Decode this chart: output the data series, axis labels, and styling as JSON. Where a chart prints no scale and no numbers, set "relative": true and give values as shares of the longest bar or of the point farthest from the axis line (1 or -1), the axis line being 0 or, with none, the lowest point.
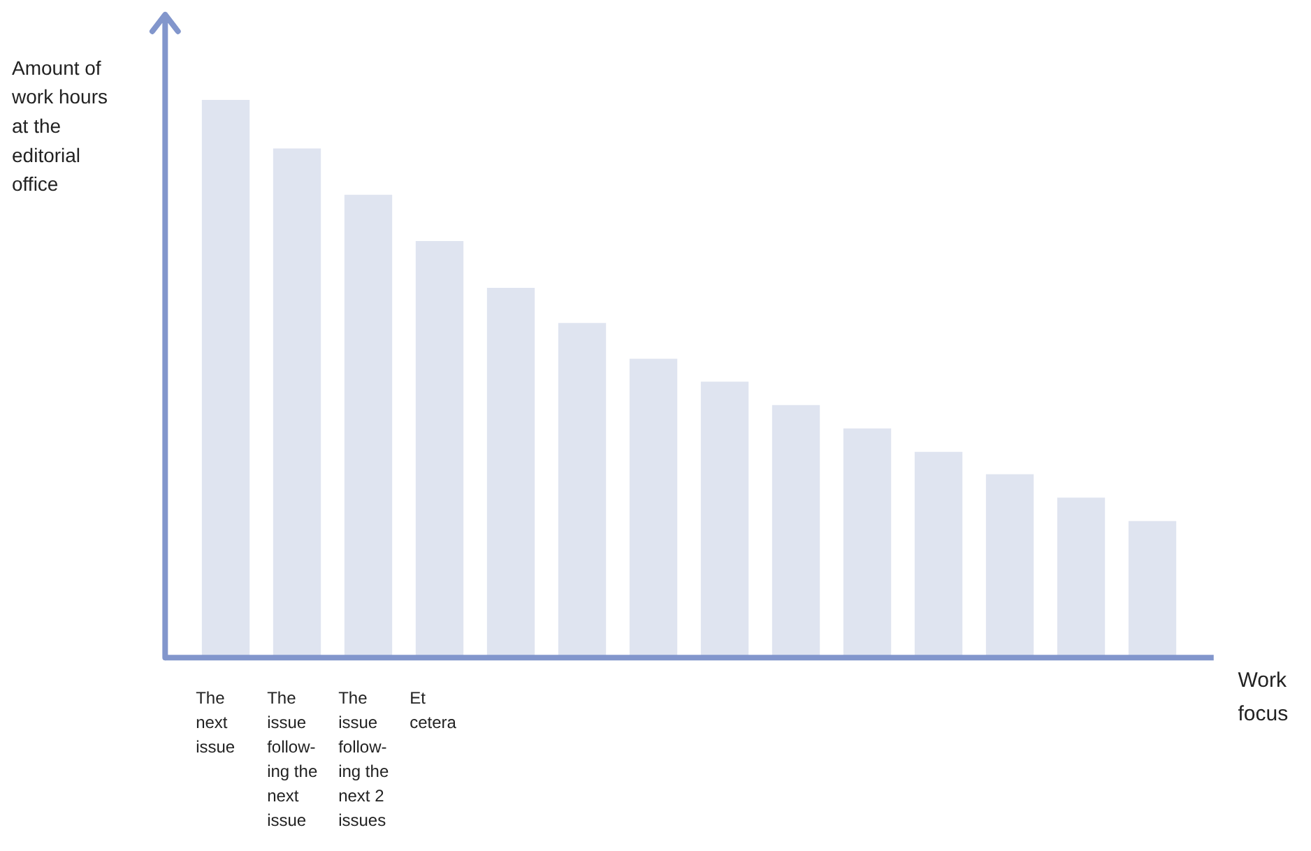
{
  "chart_data": {
    "type": "bar",
    "relative": true,
    "ylabel": "Amount of work hours at the editorial office",
    "xlabel": "Work focus",
    "categories": [
      "The next issue",
      "The issue follow-ing the next issue",
      "The issue follow-ing the next 2 issues",
      "Et cetera",
      null,
      null,
      null,
      null,
      null,
      null,
      null,
      null,
      null,
      null
    ],
    "values": [
      1,
      0.913,
      0.83,
      0.747,
      0.663,
      0.6,
      0.536,
      0.495,
      0.453,
      0.411,
      0.369,
      0.329,
      0.287,
      0.245
    ],
    "color": "#dfe4f0"
  }
}
